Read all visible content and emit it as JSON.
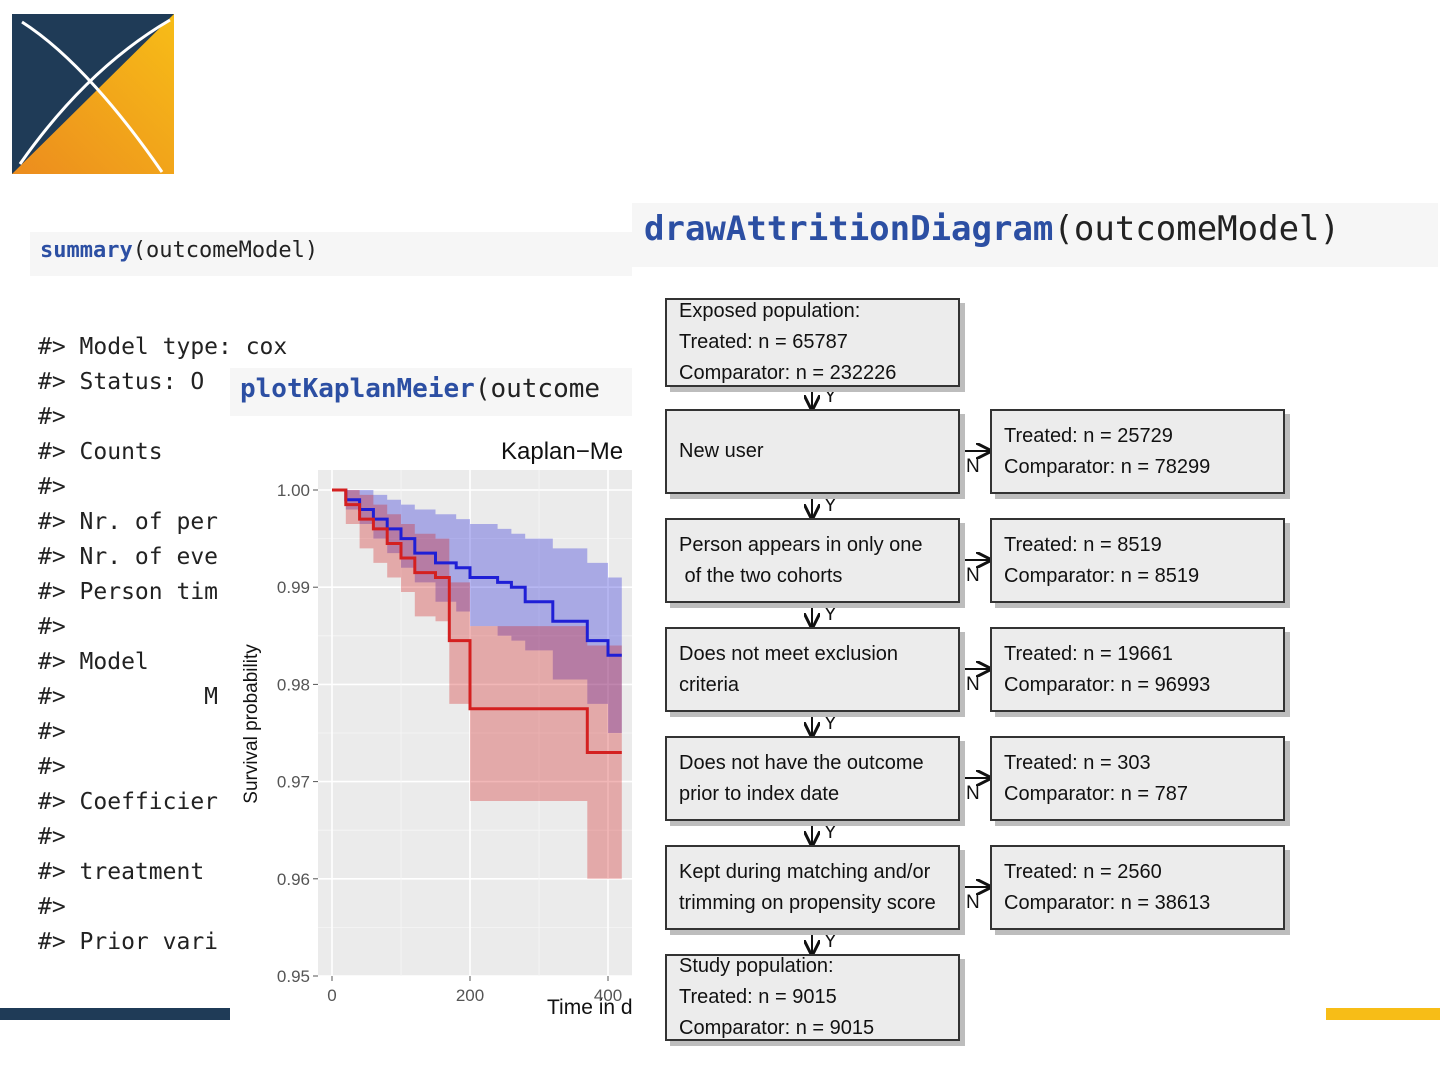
{
  "summary": {
    "code_fn": "summary",
    "code_args": "(outcomeModel)",
    "lines": [
      "#> Model type: cox",
      "#> Status: O",
      "#>",
      "#> Counts",
      "#>",
      "#> Nr. of per",
      "#> Nr. of eve",
      "#> Person tim",
      "#>",
      "#> Model",
      "#>          M",
      "#>",
      "#>",
      "#> Coefficier",
      "#>",
      "#> treatment",
      "#>",
      "#> Prior vari"
    ]
  },
  "km": {
    "code_fn": "plotKaplanMeier",
    "code_args": "(outcome",
    "title": "Kaplan−Me",
    "ylabel": "Survival probability",
    "xlabel": "Time in d",
    "colors": {
      "treated": "#1f1fd6",
      "comparator": "#d42020",
      "panel": "#ebebeb"
    }
  },
  "chart_data": {
    "type": "line",
    "title": "Kaplan−Me",
    "xlabel": "Time in d",
    "ylabel": "Survival probability",
    "ylim": [
      0.95,
      1.0
    ],
    "y_ticks": [
      "0.95",
      "0.96",
      "0.97",
      "0.98",
      "0.99",
      "1.00"
    ],
    "x_ticks": [
      "0",
      "200",
      "400"
    ],
    "series": [
      {
        "color": "#1f1fd6",
        "x": [
          0,
          20,
          40,
          60,
          80,
          100,
          120,
          150,
          180,
          200,
          240,
          260,
          280,
          320,
          340,
          370,
          400,
          420
        ],
        "y": [
          1.0,
          0.999,
          0.998,
          0.997,
          0.996,
          0.995,
          0.9935,
          0.9925,
          0.992,
          0.991,
          0.9905,
          0.99,
          0.9885,
          0.9865,
          0.9865,
          0.9845,
          0.983,
          0.983
        ],
        "ci_upper": [
          1.0,
          1.0,
          1.0,
          0.9995,
          0.999,
          0.9985,
          0.998,
          0.9975,
          0.997,
          0.9965,
          0.996,
          0.9955,
          0.995,
          0.994,
          0.994,
          0.9925,
          0.991,
          0.991
        ],
        "ci_lower": [
          1.0,
          0.998,
          0.9965,
          0.995,
          0.9935,
          0.992,
          0.9905,
          0.9885,
          0.9875,
          0.986,
          0.985,
          0.9845,
          0.9835,
          0.9805,
          0.9805,
          0.978,
          0.975,
          0.975
        ]
      },
      {
        "color": "#d42020",
        "x": [
          0,
          20,
          40,
          60,
          80,
          100,
          120,
          150,
          160,
          170,
          190,
          200,
          240,
          280,
          320,
          350,
          370,
          420
        ],
        "y": [
          1.0,
          0.9985,
          0.997,
          0.996,
          0.9945,
          0.993,
          0.9915,
          0.991,
          0.991,
          0.9845,
          0.9845,
          0.9775,
          0.9775,
          0.9775,
          0.9775,
          0.9775,
          0.973,
          0.973
        ],
        "ci_upper": [
          1.0,
          1.0,
          0.9995,
          0.9985,
          0.9975,
          0.9965,
          0.9955,
          0.995,
          0.995,
          0.9905,
          0.9905,
          0.986,
          0.986,
          0.986,
          0.986,
          0.986,
          0.984,
          0.984
        ],
        "ci_lower": [
          1.0,
          0.9965,
          0.994,
          0.9925,
          0.991,
          0.9895,
          0.987,
          0.9865,
          0.9865,
          0.978,
          0.978,
          0.968,
          0.968,
          0.968,
          0.968,
          0.968,
          0.96,
          0.96
        ]
      }
    ]
  },
  "attrition": {
    "code_fn": "drawAttritionDiagram",
    "code_args": "(outcomeModel)",
    "yes": "Y",
    "no": "N",
    "steps": [
      {
        "text": "Exposed population:\nTreated: n = 65787\nComparator: n = 232226"
      },
      {
        "text": "New user",
        "removed": "Treated: n = 25729\nComparator: n = 78299"
      },
      {
        "text": "Person appears in only one\n of the two cohorts",
        "removed": "Treated: n = 8519\nComparator: n = 8519"
      },
      {
        "text": "Does not meet exclusion\ncriteria",
        "removed": "Treated: n = 19661\nComparator: n = 96993"
      },
      {
        "text": "Does not have the outcome\nprior to index date",
        "removed": "Treated: n = 303\nComparator: n = 787"
      },
      {
        "text": "Kept during matching and/or\ntrimming on propensity score",
        "removed": "Treated: n = 2560\nComparator: n = 38613"
      },
      {
        "text": "Study population:\nTreated: n = 9015\nComparator: n = 9015"
      }
    ]
  },
  "theme": {
    "navy": "#1f3b57",
    "orange": "#ec8c1e",
    "yellow": "#f7bd17"
  }
}
